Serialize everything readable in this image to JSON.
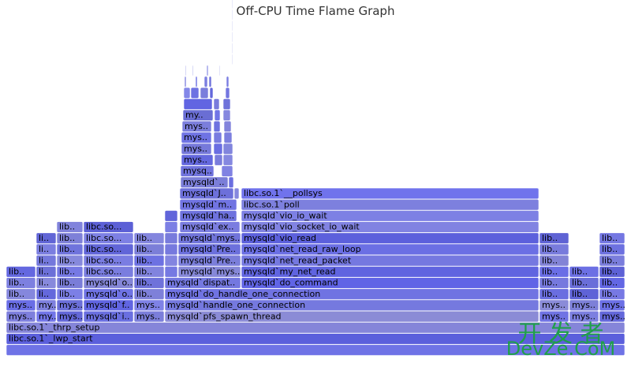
{
  "chart_data": {
    "type": "flamegraph",
    "title": "Off-CPU Time Flame Graph",
    "x_range": [
      0,
      800
    ],
    "frames": [
      {
        "depth": 0,
        "start": 8,
        "width": 784,
        "label": "",
        "color": "#6f73e6"
      },
      {
        "depth": 1,
        "start": 8,
        "width": 784,
        "label": "libc.so.1`_lwp_start",
        "color": "#5b5fdc"
      },
      {
        "depth": 2,
        "start": 8,
        "width": 784,
        "label": "libc.so.1`_thrp_setup",
        "color": "#8585d9"
      },
      {
        "depth": 3,
        "start": 8,
        "width": 37,
        "label": "mys..",
        "color": "#7e7fdd"
      },
      {
        "depth": 3,
        "start": 46,
        "width": 25,
        "label": "my..",
        "color": "#7275e8"
      },
      {
        "depth": 3,
        "start": 72,
        "width": 33,
        "label": "mys..",
        "color": "#6367d8"
      },
      {
        "depth": 3,
        "start": 106,
        "width": 63,
        "label": "mysqld`i..",
        "color": "#6a6fe0"
      },
      {
        "depth": 3,
        "start": 170,
        "width": 38,
        "label": "mys..",
        "color": "#7b7eda"
      },
      {
        "depth": 3,
        "start": 209,
        "width": 474,
        "label": "mysqld`pfs_spawn_thread",
        "color": "#8b8bd6"
      },
      {
        "depth": 3,
        "start": 684,
        "width": 37,
        "label": "mys..",
        "color": "#7073e4"
      },
      {
        "depth": 3,
        "start": 722,
        "width": 37,
        "label": "mys..",
        "color": "#7c7fe0"
      },
      {
        "depth": 3,
        "start": 760,
        "width": 32,
        "label": "mys..",
        "color": "#6468db"
      },
      {
        "depth": 4,
        "start": 8,
        "width": 37,
        "label": "mys..",
        "color": "#6a6ee6"
      },
      {
        "depth": 4,
        "start": 46,
        "width": 25,
        "label": "my..",
        "color": "#7e80de"
      },
      {
        "depth": 4,
        "start": 72,
        "width": 33,
        "label": "mys..",
        "color": "#6b6fd8"
      },
      {
        "depth": 4,
        "start": 106,
        "width": 63,
        "label": "mysqld`f..",
        "color": "#6165e2"
      },
      {
        "depth": 4,
        "start": 170,
        "width": 38,
        "label": "mys..",
        "color": "#7f82e6"
      },
      {
        "depth": 4,
        "start": 209,
        "width": 474,
        "label": "mysqld`handle_one_connection",
        "color": "#7579df"
      },
      {
        "depth": 4,
        "start": 684,
        "width": 37,
        "label": "mys..",
        "color": "#8a8bd8"
      },
      {
        "depth": 4,
        "start": 722,
        "width": 37,
        "label": "mys..",
        "color": "#7d80d8"
      },
      {
        "depth": 4,
        "start": 760,
        "width": 32,
        "label": "mys..",
        "color": "#6c70e6"
      },
      {
        "depth": 5,
        "start": 8,
        "width": 37,
        "label": "lib..",
        "color": "#8587dd"
      },
      {
        "depth": 5,
        "start": 46,
        "width": 25,
        "label": "li..",
        "color": "#6468dc"
      },
      {
        "depth": 5,
        "start": 72,
        "width": 33,
        "label": "lib..",
        "color": "#7c7fe6"
      },
      {
        "depth": 5,
        "start": 106,
        "width": 63,
        "label": "mysqld`o..",
        "color": "#6f73e4"
      },
      {
        "depth": 5,
        "start": 170,
        "width": 38,
        "label": "lib..",
        "color": "#7e80d9"
      },
      {
        "depth": 5,
        "start": 209,
        "width": 474,
        "label": "mysqld`do_handle_one_connection",
        "color": "#7073e2"
      },
      {
        "depth": 5,
        "start": 684,
        "width": 37,
        "label": "lib..",
        "color": "#6a6ee0"
      },
      {
        "depth": 5,
        "start": 722,
        "width": 37,
        "label": "lib..",
        "color": "#5f63d7"
      },
      {
        "depth": 5,
        "start": 760,
        "width": 32,
        "label": "lib..",
        "color": "#7779e4"
      },
      {
        "depth": 6,
        "start": 8,
        "width": 37,
        "label": "lib..",
        "color": "#7d80e0"
      },
      {
        "depth": 6,
        "start": 46,
        "width": 25,
        "label": "li..",
        "color": "#8789dc"
      },
      {
        "depth": 6,
        "start": 72,
        "width": 33,
        "label": "lib..",
        "color": "#7a7dd8"
      },
      {
        "depth": 6,
        "start": 106,
        "width": 63,
        "label": "mysqld`o..",
        "color": "#8486d7"
      },
      {
        "depth": 6,
        "start": 170,
        "width": 38,
        "label": "lib..",
        "color": "#6f72da"
      },
      {
        "depth": 6,
        "start": 209,
        "width": 96,
        "label": "mysqld`dispat..",
        "color": "#7478e0"
      },
      {
        "depth": 6,
        "start": 306,
        "width": 377,
        "label": "mysqld`do_command",
        "color": "#6064e6"
      },
      {
        "depth": 6,
        "start": 684,
        "width": 37,
        "label": "lib..",
        "color": "#7679de"
      },
      {
        "depth": 6,
        "start": 722,
        "width": 37,
        "label": "lib..",
        "color": "#6a6ed9"
      },
      {
        "depth": 6,
        "start": 760,
        "width": 32,
        "label": "lib..",
        "color": "#6367e4"
      },
      {
        "depth": 7,
        "start": 8,
        "width": 37,
        "label": "lib..",
        "color": "#6468e0"
      },
      {
        "depth": 7,
        "start": 46,
        "width": 25,
        "label": "li..",
        "color": "#6c70d8"
      },
      {
        "depth": 7,
        "start": 72,
        "width": 33,
        "label": "lib..",
        "color": "#7679e4"
      },
      {
        "depth": 7,
        "start": 106,
        "width": 63,
        "label": "libc.so...",
        "color": "#7a7ddf"
      },
      {
        "depth": 7,
        "start": 170,
        "width": 38,
        "label": "lib..",
        "color": "#8183de"
      },
      {
        "depth": 7,
        "start": 209,
        "width": 16,
        "label": "",
        "color": "#7579e2"
      },
      {
        "depth": 7,
        "start": 226,
        "width": 79,
        "label": "mysqld`mys..",
        "color": "#8688d8"
      },
      {
        "depth": 7,
        "start": 306,
        "width": 377,
        "label": "mysqld`my_net_read",
        "color": "#6064e0"
      },
      {
        "depth": 7,
        "start": 684,
        "width": 37,
        "label": "lib..",
        "color": "#6a6ee6"
      },
      {
        "depth": 7,
        "start": 722,
        "width": 37,
        "label": "lib..",
        "color": "#6c70e4"
      },
      {
        "depth": 7,
        "start": 760,
        "width": 32,
        "label": "lib..",
        "color": "#5d61d6"
      },
      {
        "depth": 8,
        "start": 46,
        "width": 25,
        "label": "li..",
        "color": "#7478dc"
      },
      {
        "depth": 8,
        "start": 72,
        "width": 33,
        "label": "lib..",
        "color": "#8689dc"
      },
      {
        "depth": 8,
        "start": 106,
        "width": 63,
        "label": "libc.so...",
        "color": "#7a7de2"
      },
      {
        "depth": 8,
        "start": 170,
        "width": 38,
        "label": "lib..",
        "color": "#6d71e2"
      },
      {
        "depth": 8,
        "start": 209,
        "width": 16,
        "label": "",
        "color": "#8385e0"
      },
      {
        "depth": 8,
        "start": 226,
        "width": 79,
        "label": "mysqld`Pre..",
        "color": "#7b7eda"
      },
      {
        "depth": 8,
        "start": 306,
        "width": 377,
        "label": "mysqld`net_read_packet",
        "color": "#7578e0"
      },
      {
        "depth": 8,
        "start": 684,
        "width": 37,
        "label": "lib..",
        "color": "#8283d6"
      },
      {
        "depth": 8,
        "start": 760,
        "width": 32,
        "label": "lib..",
        "color": "#7a7ddc"
      },
      {
        "depth": 9,
        "start": 46,
        "width": 25,
        "label": "li..",
        "color": "#7b7ee0"
      },
      {
        "depth": 9,
        "start": 72,
        "width": 33,
        "label": "lib..",
        "color": "#6f73dc"
      },
      {
        "depth": 9,
        "start": 106,
        "width": 63,
        "label": "libc.so...",
        "color": "#6165d8"
      },
      {
        "depth": 9,
        "start": 170,
        "width": 38,
        "label": "lib..",
        "color": "#7b7ed8"
      },
      {
        "depth": 9,
        "start": 209,
        "width": 16,
        "label": "",
        "color": "#7679de"
      },
      {
        "depth": 9,
        "start": 226,
        "width": 79,
        "label": "mysqld`Pre..",
        "color": "#6c70dc"
      },
      {
        "depth": 9,
        "start": 306,
        "width": 377,
        "label": "mysqld`net_read_raw_loop",
        "color": "#6b6fe4"
      },
      {
        "depth": 9,
        "start": 684,
        "width": 37,
        "label": "lib..",
        "color": "#787bdc"
      },
      {
        "depth": 9,
        "start": 760,
        "width": 32,
        "label": "lib..",
        "color": "#6d71e0"
      },
      {
        "depth": 10,
        "start": 46,
        "width": 25,
        "label": "li..",
        "color": "#6165d6"
      },
      {
        "depth": 10,
        "start": 72,
        "width": 33,
        "label": "lib..",
        "color": "#7e80d8"
      },
      {
        "depth": 10,
        "start": 106,
        "width": 63,
        "label": "libc.so...",
        "color": "#7d80e4"
      },
      {
        "depth": 10,
        "start": 170,
        "width": 38,
        "label": "lib..",
        "color": "#8486de"
      },
      {
        "depth": 10,
        "start": 209,
        "width": 16,
        "label": "",
        "color": "#787bdc"
      },
      {
        "depth": 10,
        "start": 226,
        "width": 79,
        "label": "mysqld`mys..",
        "color": "#7174da"
      },
      {
        "depth": 10,
        "start": 306,
        "width": 377,
        "label": "mysqld`vio_read",
        "color": "#5c60dc"
      },
      {
        "depth": 10,
        "start": 684,
        "width": 37,
        "label": "lib..",
        "color": "#5f63d4"
      },
      {
        "depth": 10,
        "start": 760,
        "width": 32,
        "label": "lib..",
        "color": "#7477e2"
      },
      {
        "depth": 11,
        "start": 72,
        "width": 33,
        "label": "lib..",
        "color": "#8183dc"
      },
      {
        "depth": 11,
        "start": 106,
        "width": 63,
        "label": "libc.so...",
        "color": "#5c60d6"
      },
      {
        "depth": 11,
        "start": 209,
        "width": 16,
        "label": "",
        "color": "#7c7fe4"
      },
      {
        "depth": 11,
        "start": 228,
        "width": 76,
        "label": "mysqld`ex..",
        "color": "#7b7de0"
      },
      {
        "depth": 11,
        "start": 306,
        "width": 377,
        "label": "mysqld`vio_socket_io_wait",
        "color": "#8183e2"
      },
      {
        "depth": 12,
        "start": 209,
        "width": 16,
        "label": "",
        "color": "#6165da"
      },
      {
        "depth": 12,
        "start": 228,
        "width": 72,
        "label": "mysqld`ha..",
        "color": "#6e72de"
      },
      {
        "depth": 12,
        "start": 306,
        "width": 377,
        "label": "mysqld`vio_io_wait",
        "color": "#7d80e4"
      },
      {
        "depth": 13,
        "start": 228,
        "width": 72,
        "label": "mysqld`m..",
        "color": "#7174e2"
      },
      {
        "depth": 13,
        "start": 306,
        "width": 377,
        "label": "libc.so.1`poll",
        "color": "#7d80de"
      },
      {
        "depth": 14,
        "start": 228,
        "width": 68,
        "label": "mysqld`J..",
        "color": "#6d70da"
      },
      {
        "depth": 14,
        "start": 297,
        "width": 6,
        "label": "",
        "color": "#8688de"
      },
      {
        "depth": 14,
        "start": 306,
        "width": 377,
        "label": "libc.so.1`__pollsys",
        "color": "#7073ec"
      },
      {
        "depth": 15,
        "start": 229,
        "width": 60,
        "label": "mysqld`..",
        "color": "#7b7ed8"
      },
      {
        "depth": 15,
        "start": 290,
        "width": 6,
        "label": "",
        "color": "#6b6fe0"
      },
      {
        "depth": 16,
        "start": 229,
        "width": 42,
        "label": "mysq..",
        "color": "#7174de"
      },
      {
        "depth": 16,
        "start": 281,
        "width": 14,
        "label": "",
        "color": "#8082e2"
      },
      {
        "depth": 17,
        "start": 230,
        "width": 40,
        "label": "mys..",
        "color": "#6468de"
      },
      {
        "depth": 17,
        "start": 272,
        "width": 10,
        "label": "",
        "color": "#7a7ddc"
      },
      {
        "depth": 17,
        "start": 283,
        "width": 12,
        "label": "",
        "color": "#8588e0"
      },
      {
        "depth": 18,
        "start": 230,
        "width": 38,
        "label": "mys..",
        "color": "#7679da"
      },
      {
        "depth": 18,
        "start": 271,
        "width": 11,
        "label": "",
        "color": "#6a6ee2"
      },
      {
        "depth": 18,
        "start": 283,
        "width": 12,
        "label": "",
        "color": "#8185dd"
      },
      {
        "depth": 19,
        "start": 230,
        "width": 38,
        "label": "mys..",
        "color": "#6f73e4"
      },
      {
        "depth": 19,
        "start": 271,
        "width": 10,
        "label": "",
        "color": "#797ce0"
      },
      {
        "depth": 19,
        "start": 284,
        "width": 10,
        "label": "",
        "color": "#7c7fdf"
      },
      {
        "depth": 20,
        "start": 231,
        "width": 37,
        "label": "mys..",
        "color": "#7b7edc"
      },
      {
        "depth": 20,
        "start": 271,
        "width": 8,
        "label": "",
        "color": "#6e72e0"
      },
      {
        "depth": 20,
        "start": 284,
        "width": 9,
        "label": "",
        "color": "#8384dc"
      },
      {
        "depth": 21,
        "start": 232,
        "width": 38,
        "label": "my..",
        "color": "#6a6ed4"
      },
      {
        "depth": 21,
        "start": 272,
        "width": 7,
        "label": "",
        "color": "#7175e6"
      },
      {
        "depth": 21,
        "start": 283,
        "width": 9,
        "label": "",
        "color": "#8688df"
      },
      {
        "depth": 22,
        "start": 233,
        "width": 36,
        "label": "",
        "color": "#6165e2"
      },
      {
        "depth": 22,
        "start": 271,
        "width": 7,
        "label": "",
        "color": "#787bdc"
      },
      {
        "depth": 22,
        "start": 283,
        "width": 9,
        "label": "",
        "color": "#6f73da"
      },
      {
        "depth": 23,
        "start": 233,
        "width": 8,
        "label": "",
        "color": "#8387e8"
      },
      {
        "depth": 23,
        "start": 242,
        "width": 10,
        "label": "",
        "color": "#6e72e2"
      },
      {
        "depth": 23,
        "start": 254,
        "width": 10,
        "label": "",
        "color": "#7a7ddc"
      },
      {
        "depth": 23,
        "start": 266,
        "width": 4,
        "label": "",
        "color": "#6468dc"
      },
      {
        "depth": 23,
        "start": 286,
        "width": 5,
        "label": "",
        "color": "#7376e0"
      },
      {
        "depth": 24,
        "start": 234,
        "width": 2,
        "label": "",
        "color": "#8587e0"
      },
      {
        "depth": 24,
        "start": 248,
        "width": 2,
        "label": "",
        "color": "#6a6ee2"
      },
      {
        "depth": 24,
        "start": 259,
        "width": 4,
        "label": "",
        "color": "#7b7ee0"
      },
      {
        "depth": 24,
        "start": 265,
        "width": 3,
        "label": "",
        "color": "#6e72dc"
      },
      {
        "depth": 24,
        "start": 287,
        "width": 3,
        "label": "",
        "color": "#7a7de2"
      },
      {
        "depth": 25,
        "start": 235,
        "width": 1,
        "label": "",
        "color": "#9a9ce8"
      },
      {
        "depth": 25,
        "start": 244,
        "width": 1,
        "label": "",
        "color": "#9a9ce8"
      },
      {
        "depth": 25,
        "start": 262,
        "width": 2,
        "label": "",
        "color": "#9a9ce8"
      },
      {
        "depth": 25,
        "start": 278,
        "width": 1,
        "label": "",
        "color": "#b8b9ee"
      },
      {
        "depth": 26,
        "start": 294,
        "width": 1,
        "label": "",
        "color": "#c8c9f0"
      },
      {
        "depth": 27,
        "start": 294,
        "width": 1,
        "label": "",
        "color": "#c8c9f0"
      },
      {
        "depth": 28,
        "start": 294,
        "width": 1,
        "label": "",
        "color": "#c8c9f0"
      },
      {
        "depth": 29,
        "start": 294,
        "width": 1,
        "label": "",
        "color": "#c8c9f0"
      },
      {
        "depth": 30,
        "start": 294,
        "width": 1,
        "label": "",
        "color": "#c8c9f0"
      },
      {
        "depth": 31,
        "start": 294,
        "width": 1,
        "label": "",
        "color": "#c8c9f0"
      },
      {
        "depth": 32,
        "start": 294,
        "width": 1,
        "label": "",
        "color": "#c8c9f0"
      },
      {
        "depth": 33,
        "start": 294,
        "width": 1,
        "label": "",
        "color": "#c8c9f0"
      },
      {
        "depth": 34,
        "start": 294,
        "width": 1,
        "label": "",
        "color": "#c8c9f0"
      },
      {
        "depth": 35,
        "start": 294,
        "width": 1,
        "label": "",
        "color": "#c8c9f0"
      },
      {
        "depth": 36,
        "start": 294,
        "width": 1,
        "label": "",
        "color": "#c8c9f0"
      },
      {
        "depth": 37,
        "start": 294,
        "width": 1,
        "label": "",
        "color": "#c8c9f0"
      },
      {
        "depth": 38,
        "start": 294,
        "width": 1,
        "label": "",
        "color": "#c8c9f0"
      },
      {
        "depth": 39,
        "start": 294,
        "width": 1,
        "label": "",
        "color": "#c8c9f0"
      },
      {
        "depth": 40,
        "start": 294,
        "width": 1,
        "label": "",
        "color": "#c8c9f0"
      },
      {
        "depth": 41,
        "start": 294,
        "width": 1,
        "label": "",
        "color": "#c8c9f0"
      },
      {
        "depth": 42,
        "start": 294,
        "width": 1,
        "label": "",
        "color": "#c8c9f0"
      }
    ]
  },
  "watermark": {
    "line1": "开 发 者",
    "line2": "DevZe.CoM"
  }
}
